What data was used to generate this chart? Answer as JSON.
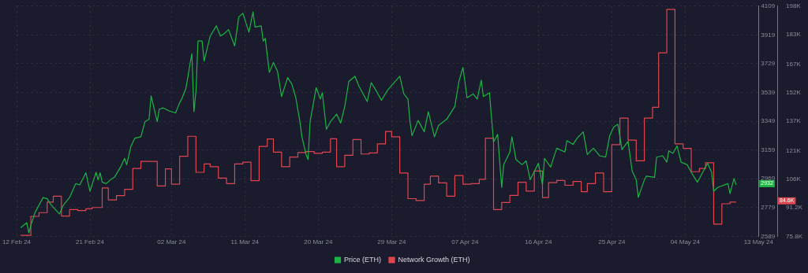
{
  "chart_data": {
    "type": "line",
    "grid": true,
    "legend": "bottom",
    "xlim": [
      "--02-12",
      "--05-13"
    ],
    "xticks": [
      {
        "value": "--02-12",
        "label": "12 Feb 24"
      },
      {
        "value": "--02-21",
        "label": "21 Feb 24"
      },
      {
        "value": "--03-02",
        "label": "02 Mar 24"
      },
      {
        "value": "--03-11",
        "label": "11 Mar 24"
      },
      {
        "value": "--03-20",
        "label": "20 Mar 24"
      },
      {
        "value": "--03-29",
        "label": "29 Mar 24"
      },
      {
        "value": "--04-07",
        "label": "07 Apr 24"
      },
      {
        "value": "--04-16",
        "label": "16 Apr 24"
      },
      {
        "value": "--04-25",
        "label": "25 Apr 24"
      },
      {
        "value": "--05-04",
        "label": "04 May 24"
      },
      {
        "value": "--05-13",
        "label": "13 May 24"
      }
    ],
    "ylim": [
      2589,
      4109
    ],
    "yticks": [
      2589,
      2779,
      2969,
      3159,
      3349,
      3539,
      3729,
      3919,
      4109
    ],
    "y2lim": [
      75.8,
      198
    ],
    "y2ticks": [
      {
        "value": 75.8,
        "label": "75.8K"
      },
      {
        "value": 91.2,
        "label": "91.2K"
      },
      {
        "value": 106,
        "label": "106K"
      },
      {
        "value": 121,
        "label": "121K"
      },
      {
        "value": 137,
        "label": "137K"
      },
      {
        "value": 152,
        "label": "152K"
      },
      {
        "value": 167,
        "label": "167K"
      },
      {
        "value": 183,
        "label": "183K"
      },
      {
        "value": 198,
        "label": "198K"
      }
    ],
    "annotations": [
      "2932",
      "84.6K"
    ],
    "series": [
      {
        "name": "Price (ETH)",
        "color": "#1cb544",
        "x": [
          "--02-12T12:00",
          "--02-13T06:00",
          "--02-13T12:00",
          "--02-13T18:00",
          "--02-14T06:00",
          "--02-15T06:00",
          "--02-15T18:00",
          "--02-16T06:00",
          "--02-17T06:00",
          "--02-17T18:00",
          "--02-18T12:00",
          "--02-19T06:00",
          "--02-19T18:00",
          "--02-20T12:00",
          "--02-21T00:00",
          "--02-21T18:00",
          "--02-22T00:00",
          "--02-22T06:00",
          "--02-22T12:00",
          "--02-23T00:00",
          "--02-23T12:00",
          "--02-24T00:00",
          "--02-24T18:00",
          "--02-25T06:00",
          "--02-25T12:00",
          "--02-26T00:00",
          "--02-26T12:00",
          "--02-27T06:00",
          "--02-27T18:00",
          "--02-28T06:00",
          "--02-28T12:00",
          "--02-29T06:00",
          "--02-29T12:00",
          "--03-01T00:00",
          "--03-01T18:00",
          "--03-02T12:00",
          "--03-03T00:00",
          "--03-03T06:00",
          "--03-03T18:00",
          "--03-04T00:00",
          "--03-04T06:00",
          "--03-04T12:00",
          "--03-04T18:00",
          "--03-05T00:00",
          "--03-05T06:00",
          "--03-05T18:00",
          "--03-06T00:00",
          "--03-06T18:00",
          "--03-07T12:00",
          "--03-08T00:00",
          "--03-08T12:00",
          "--03-09T00:00",
          "--03-09T18:00",
          "--03-10T06:00",
          "--03-10T18:00",
          "--03-11T12:00",
          "--03-12T00:00",
          "--03-12T06:00",
          "--03-13T00:00",
          "--03-13T06:00",
          "--03-13T12:00",
          "--03-14T00:00",
          "--03-14T12:00",
          "--03-15T00:00",
          "--03-15T12:00",
          "--03-16T06:00",
          "--03-16T18:00",
          "--03-17T06:00",
          "--03-17T18:00",
          "--03-18T00:00",
          "--03-18T12:00",
          "--03-18T18:00",
          "--03-19T00:00",
          "--03-19T18:00",
          "--03-20T06:00",
          "--03-20T12:00",
          "--03-21T00:00",
          "--03-21T12:00",
          "--03-22T06:00",
          "--03-22T18:00",
          "--03-23T06:00",
          "--03-23T18:00",
          "--03-24T12:00",
          "--03-25T00:00",
          "--03-26T00:00",
          "--03-26T12:00",
          "--03-27T06:00",
          "--03-27T18:00",
          "--03-28T12:00",
          "--03-30T00:00",
          "--03-30T12:00",
          "--03-31T00:00",
          "--03-31T06:00",
          "--03-31T12:00",
          "--04-01T06:00",
          "--04-02T00:00",
          "--04-02T12:00",
          "--04-03T06:00",
          "--04-03T18:00",
          "--04-04T18:00",
          "--04-05T18:00",
          "--04-06T06:00",
          "--04-06T18:00",
          "--04-07T06:00",
          "--04-08T00:00",
          "--04-08T12:00",
          "--04-09T00:00",
          "--04-09T06:00",
          "--04-10T00:00",
          "--04-10T12:00",
          "--04-11T00:00",
          "--04-11T12:00",
          "--04-11T18:00",
          "--04-12T12:00",
          "--04-12T18:00",
          "--04-13T06:00",
          "--04-14T00:00",
          "--04-14T12:00",
          "--04-15T00:00",
          "--04-16T00:00",
          "--04-16T12:00",
          "--04-16T18:00",
          "--04-17T12:00",
          "--04-18T06:00",
          "--04-19T06:00",
          "--04-19T12:00",
          "--04-20T06:00",
          "--04-20T18:00",
          "--04-21T12:00",
          "--04-22T00:00",
          "--04-22T18:00",
          "--04-23T12:00",
          "--04-24T06:00",
          "--04-24T18:00",
          "--04-25T06:00",
          "--04-25T18:00",
          "--04-26T06:00",
          "--04-27T00:00",
          "--04-27T12:00",
          "--04-28T00:00",
          "--04-28T06:00",
          "--04-29T00:00",
          "--04-29T06:00",
          "--04-30T06:00",
          "--04-30T12:00",
          "--05-01T06:00",
          "--05-01T18:00",
          "--05-02T00:00",
          "--05-02T12:00",
          "--05-03T00:00",
          "--05-03T12:00",
          "--05-04T06:00",
          "--05-04T18:00",
          "--05-05T12:00",
          "--05-06T06:00",
          "--05-06T18:00",
          "--05-07T06:00",
          "--05-07T12:00",
          "--05-08T00:00",
          "--05-09T06:00",
          "--05-09T12:00",
          "--05-10T00:00",
          "--05-10T06:00"
        ],
        "values": [
          2646,
          2679,
          2612,
          2662,
          2745,
          2845,
          2837,
          2796,
          2737,
          2796,
          2846,
          2937,
          2929,
          3009,
          2887,
          3012,
          2962,
          3009,
          2946,
          2937,
          2962,
          2979,
          3046,
          3104,
          3062,
          3179,
          3237,
          3246,
          3346,
          3362,
          3516,
          3346,
          3429,
          3437,
          3416,
          3404,
          3471,
          3496,
          3562,
          3637,
          3721,
          3796,
          3412,
          3546,
          3879,
          3879,
          3746,
          3912,
          3979,
          3912,
          3929,
          3954,
          3846,
          4037,
          4062,
          3937,
          4071,
          3971,
          3979,
          3879,
          3896,
          3671,
          3737,
          3679,
          3512,
          3637,
          3596,
          3504,
          3346,
          3246,
          3129,
          3096,
          3346,
          3571,
          3496,
          3537,
          3296,
          3346,
          3396,
          3337,
          3446,
          3612,
          3646,
          3579,
          3479,
          3604,
          3537,
          3487,
          3554,
          3646,
          3529,
          3496,
          3346,
          3254,
          3354,
          3279,
          3412,
          3246,
          3321,
          3362,
          3446,
          3612,
          3704,
          3504,
          3529,
          3496,
          3621,
          3512,
          3537,
          3212,
          3262,
          2912,
          3062,
          3146,
          3246,
          3096,
          3062,
          3087,
          2962,
          3071,
          2929,
          3104,
          3046,
          3171,
          3146,
          3221,
          3196,
          3237,
          3279,
          3129,
          3171,
          3121,
          3112,
          3254,
          3312,
          3329,
          3162,
          3216,
          3021,
          2962,
          2846,
          2962,
          2987,
          2979,
          3112,
          3121,
          3079,
          3154,
          3137,
          3187,
          3079,
          3062,
          3012,
          2946,
          3021,
          3071,
          3012,
          2887,
          2912,
          2937,
          2871,
          2971,
          2929
        ]
      },
      {
        "name": "Network Growth (ETH)",
        "type": "step",
        "axis": "y2",
        "color": "#e0464f",
        "x": [
          "--02-12T12:00",
          "--02-13T18:00",
          "--02-14T18:00",
          "--02-15T18:00",
          "--02-16T12:00",
          "--02-17T12:00",
          "--02-18T12:00",
          "--02-19T12:00",
          "--02-20T12:00",
          "--02-21T06:00",
          "--02-22T12:00",
          "--02-23T06:00",
          "--02-24T06:00",
          "--02-25T06:00",
          "--02-26T06:00",
          "--02-27T06:00",
          "--02-29T06:00",
          "--03-01T06:00",
          "--03-02T00:00",
          "--03-03T00:00",
          "--03-04T00:00",
          "--03-05T00:00",
          "--03-06T00:00",
          "--03-06T18:00",
          "--03-07T18:00",
          "--03-08T18:00",
          "--03-09T18:00",
          "--03-10T18:00",
          "--03-11T18:00",
          "--03-12T18:00",
          "--03-13T18:00",
          "--03-14T12:00",
          "--03-15T12:00",
          "--03-16T12:00",
          "--03-17T12:00",
          "--03-18T12:00",
          "--03-19T12:00",
          "--03-20T12:00",
          "--03-21T12:00",
          "--03-22T06:00",
          "--03-23T06:00",
          "--03-24T06:00",
          "--03-25T06:00",
          "--03-26T06:00",
          "--03-27T06:00",
          "--03-28T06:00",
          "--03-29T00:00",
          "--03-30T00:00",
          "--03-31T00:00",
          "--04-01T00:00",
          "--04-02T00:00",
          "--04-02T18:00",
          "--04-03T18:00",
          "--04-04T18:00",
          "--04-05T18:00",
          "--04-06T18:00",
          "--04-07T18:00",
          "--04-08T18:00",
          "--04-09T12:00",
          "--04-10T12:00",
          "--04-11T12:00",
          "--04-12T12:00",
          "--04-13T12:00",
          "--04-14T12:00",
          "--04-15T12:00",
          "--04-16T12:00",
          "--04-17T06:00",
          "--04-18T06:00",
          "--04-19T06:00",
          "--04-20T06:00",
          "--04-21T06:00",
          "--04-22T00:00",
          "--04-23T00:00",
          "--04-24T00:00",
          "--04-25T00:00",
          "--04-26T00:00",
          "--04-27T00:00",
          "--04-28T00:00",
          "--04-29T00:00",
          "--04-30T00:00",
          "--04-30T18:00",
          "--05-01T18:00",
          "--05-02T18:00",
          "--05-03T18:00",
          "--05-04T18:00",
          "--05-05T18:00",
          "--05-06T12:00",
          "--05-07T12:00",
          "--05-08T12:00",
          "--05-09T12:00",
          "--05-10T06:00"
        ],
        "values": [
          76.3,
          86.4,
          88.4,
          94.0,
          97.1,
          86.6,
          90.0,
          89.5,
          90.4,
          91.1,
          101.5,
          95.1,
          97.4,
          100.8,
          111.8,
          115.6,
          102.5,
          111.6,
          103.5,
          118.3,
          128.9,
          109.8,
          114.2,
          112.8,
          106.7,
          103.8,
          114.2,
          115.2,
          105.4,
          123.5,
          127.5,
          120.5,
          112.8,
          117.9,
          120.3,
          120.8,
          119.9,
          120.5,
          127.6,
          112.8,
          118.8,
          127.2,
          119.5,
          120.1,
          124.9,
          131.5,
          128.6,
          109.4,
          95.8,
          94.8,
          103.5,
          107.8,
          104.2,
          97.1,
          108.1,
          103.5,
          103.8,
          106.1,
          127.9,
          90.0,
          93.8,
          97.5,
          104.5,
          99.8,
          110.5,
          96.4,
          104.3,
          105.5,
          102.9,
          104.9,
          99.5,
          103.8,
          109.4,
          99.5,
          124.5,
          138.6,
          126.9,
          115.9,
          138.6,
          144.3,
          173.2,
          196.3,
          124.9,
          122.5,
          110.1,
          111.8,
          114.9,
          82.3,
          93.1,
          94.0,
          94.0
        ]
      }
    ]
  }
}
